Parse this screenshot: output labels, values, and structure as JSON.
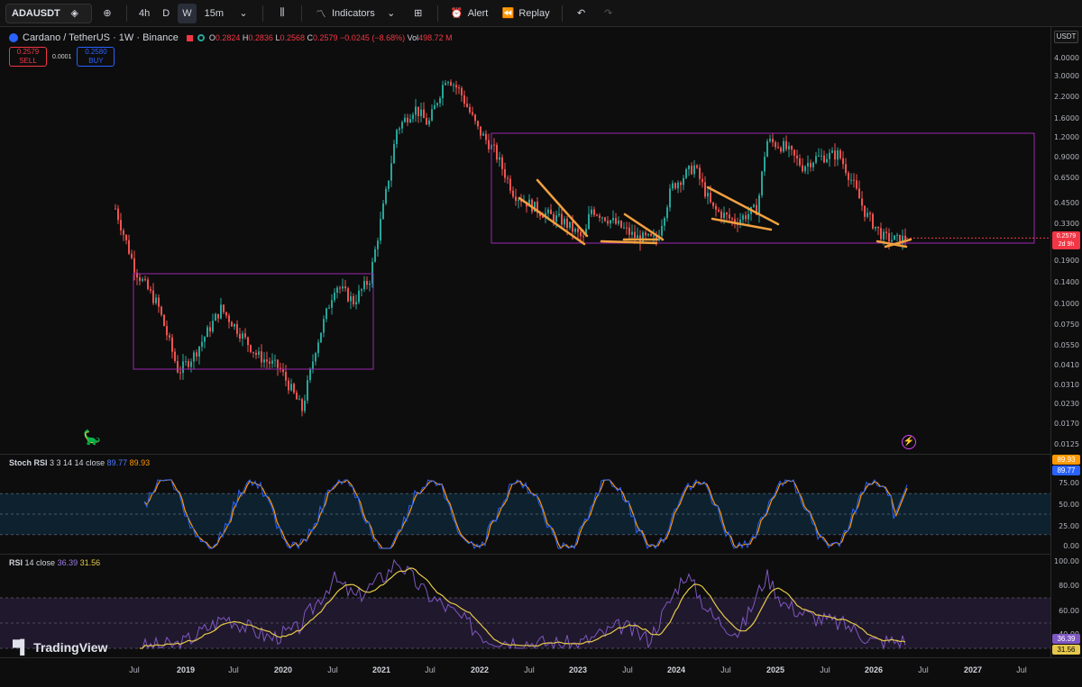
{
  "toolbar": {
    "symbol": "ADAUSDT",
    "intervals": [
      "4h",
      "D",
      "W",
      "15m"
    ],
    "active_interval": "W",
    "indicators_label": "Indicators",
    "alert_label": "Alert",
    "replay_label": "Replay"
  },
  "legend": {
    "title": "Cardano / TetherUS · 1W · Binance",
    "o_label": "O",
    "o": "0.2824",
    "h_label": "H",
    "h": "0.2836",
    "l_label": "L",
    "l": "0.2568",
    "c_label": "C",
    "c": "0.2579",
    "change": "−0.0245 (−8.68%)",
    "vol_label": "Vol",
    "vol": "498.72 M",
    "sell_price": "0.2579",
    "sell_label": "SELL",
    "spread": "0.0001",
    "buy_price": "0.2580",
    "buy_label": "BUY"
  },
  "price_axis": {
    "currency": "USDT",
    "labels": [
      "4.0000",
      "3.0000",
      "2.2000",
      "1.6000",
      "1.2000",
      "0.9000",
      "0.6500",
      "0.4500",
      "0.3300",
      "0.1900",
      "0.1400",
      "0.1000",
      "0.0750",
      "0.0550",
      "0.0410",
      "0.0310",
      "0.0230",
      "0.0170",
      "0.0125"
    ],
    "last_price": "0.2579",
    "countdown": "2d 9h"
  },
  "stoch_rsi": {
    "title": "Stoch RSI",
    "params": "3 3 14 14 close",
    "k": "89.77",
    "d": "89.93",
    "axis": [
      "75.00",
      "50.00",
      "25.00",
      "0.00"
    ]
  },
  "rsi": {
    "title": "RSI",
    "params": "14 close",
    "value": "36.39",
    "ma": "31.56",
    "axis": [
      "100.00",
      "80.00",
      "60.00",
      "40.00"
    ]
  },
  "time_axis": {
    "labels": [
      "Jul",
      "2019",
      "Jul",
      "2020",
      "Jul",
      "2021",
      "Jul",
      "2022",
      "Jul",
      "2023",
      "Jul",
      "2024",
      "Jul",
      "2025",
      "Jul",
      "2026",
      "Jul",
      "2027",
      "Jul"
    ]
  },
  "branding": {
    "name": "TradingView"
  },
  "colors": {
    "up": "#26a69a",
    "down": "#ef5350",
    "box": "#9c27b0",
    "trend": "#f0a040",
    "k": "#2962ff",
    "d": "#ff9800",
    "rsi": "#7e57c2",
    "rsi_ma": "#e5c84b"
  }
}
